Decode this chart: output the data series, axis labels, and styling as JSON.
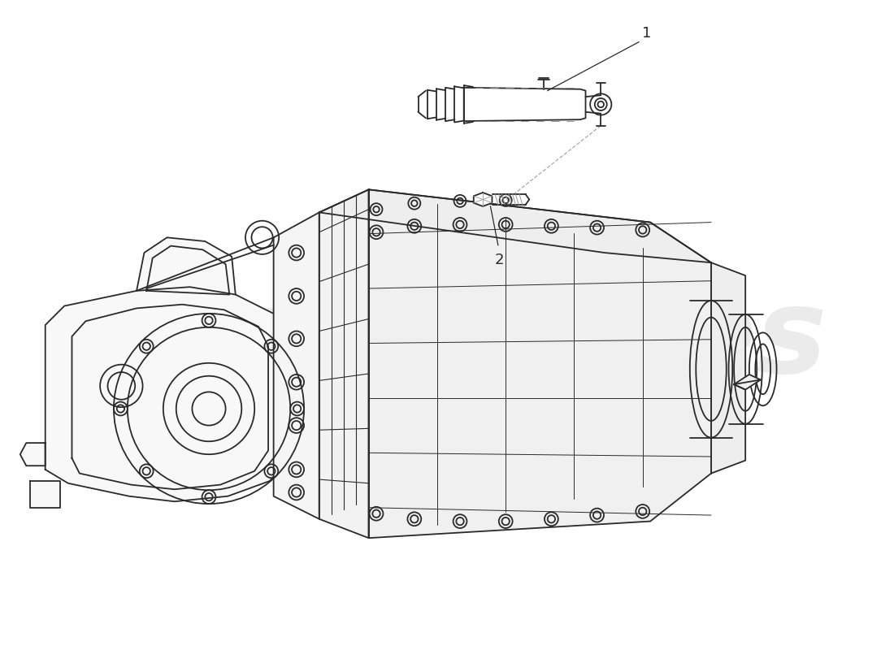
{
  "background_color": "#ffffff",
  "line_color": "#2a2a2a",
  "line_width": 1.3,
  "watermark_color": "#ebebeb",
  "watermark_yellow": "#e8dc50",
  "label1": "1",
  "label2": "2"
}
